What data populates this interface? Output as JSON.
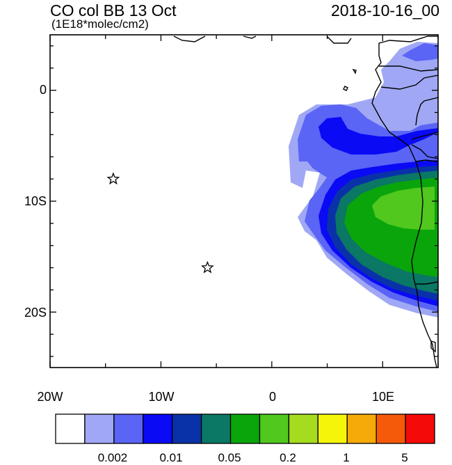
{
  "header": {
    "title": "CO col BB 13 Oct",
    "units": "(1E18*molec/cm2)",
    "date": "2018-10-16_00"
  },
  "axes": {
    "y_labels": [
      "0",
      "10S",
      "20S"
    ],
    "x_labels": [
      "20W",
      "10W",
      "0",
      "10E"
    ],
    "lon_range": [
      -20,
      15
    ],
    "lat_range": [
      -25,
      5
    ]
  },
  "markers": [
    {
      "name": "star-marker-1",
      "lon": -14.3,
      "lat": -8.0
    },
    {
      "name": "star-marker-2",
      "lon": -5.8,
      "lat": -16.0
    }
  ],
  "colorbar": {
    "colors": [
      "#ffffff",
      "#a0a8f5",
      "#5a64f5",
      "#0a0af5",
      "#0a32a8",
      "#0a7864",
      "#0aa50a",
      "#50c81e",
      "#a5dc1e",
      "#f5f50a",
      "#f5aa0a",
      "#f55a0a",
      "#f50a0a"
    ],
    "tick_labels": [
      "0.002",
      "0.01",
      "0.05",
      "0.2",
      "1",
      "5"
    ]
  }
}
